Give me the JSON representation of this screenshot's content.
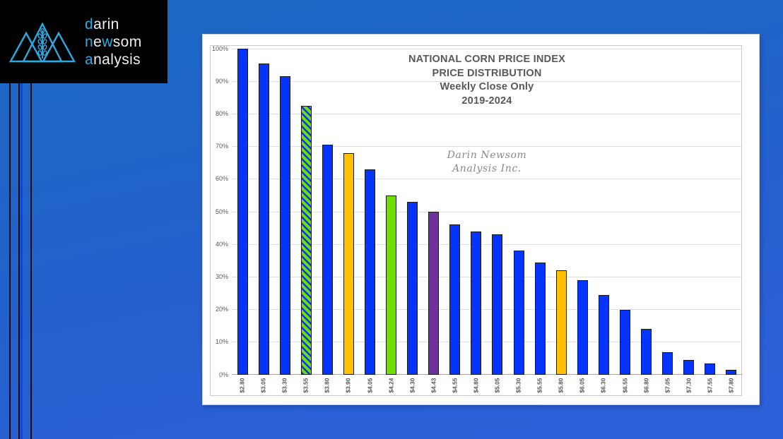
{
  "logo": {
    "icon": "mountains-wheat-icon",
    "words": [
      {
        "parts": [
          {
            "t": "d",
            "accent": true
          },
          {
            "t": "arin",
            "accent": false
          }
        ]
      },
      {
        "parts": [
          {
            "t": "n",
            "accent": true
          },
          {
            "t": "e",
            "accent": false
          },
          {
            "t": "w",
            "accent": true
          },
          {
            "t": "som",
            "accent": false
          }
        ]
      },
      {
        "parts": [
          {
            "t": "a",
            "accent": true
          },
          {
            "t": "nalysis",
            "accent": false
          }
        ]
      }
    ]
  },
  "colors": {
    "background_top": "#1c68c2",
    "background_bottom": "#2f60db",
    "logo_accent": "#2da9e1",
    "logo_text": "#efefef",
    "bar_blue": "#0534ff",
    "bar_orange": "#ffc000",
    "bar_green": "#70de00",
    "bar_purple": "#7030a0",
    "bar_outline": "#1a1a1a",
    "axis_text": "#595959",
    "gridline": "#e0e0e0",
    "axis_line": "#a6a6a6",
    "title_text": "#595959",
    "watermark_text": "#8a8a8a"
  },
  "chart_data": {
    "type": "bar",
    "title_lines": [
      "NATIONAL CORN PRICE INDEX",
      "PRICE DISTRIBUTION",
      "Weekly Close Only",
      "2019-2024"
    ],
    "watermark_lines": [
      "Darin Newsom",
      "Analysis Inc."
    ],
    "xlabel": "",
    "ylabel": "",
    "ylim": [
      0,
      100
    ],
    "ytick_step": 10,
    "yticks": [
      "0%",
      "10%",
      "20%",
      "30%",
      "40%",
      "50%",
      "60%",
      "70%",
      "80%",
      "90%",
      "100%"
    ],
    "grid": true,
    "legend": "none",
    "categories": [
      "$2.80",
      "$3.05",
      "$3.30",
      "$3.55",
      "$3.80",
      "$3.90",
      "$4.05",
      "$4.24",
      "$4.30",
      "$4.43",
      "$4.55",
      "$4.80",
      "$5.05",
      "$5.30",
      "$5.55",
      "$5.80",
      "$6.05",
      "$6.30",
      "$6.55",
      "$6.80",
      "$7.05",
      "$7.30",
      "$7.55",
      "$7.80"
    ],
    "values": [
      100,
      95.5,
      91.5,
      82.5,
      70.5,
      68,
      63,
      55,
      53,
      50,
      46,
      44,
      43,
      38,
      34.5,
      32,
      29,
      24.5,
      20,
      14,
      7,
      4.5,
      3.5,
      1.5
    ],
    "bar_colors": [
      "blue",
      "blue",
      "blue",
      "hatch",
      "blue",
      "orange",
      "blue",
      "green",
      "blue",
      "purple",
      "blue",
      "blue",
      "blue",
      "blue",
      "blue",
      "orange",
      "blue",
      "blue",
      "blue",
      "blue",
      "blue",
      "blue",
      "blue",
      "blue"
    ]
  }
}
